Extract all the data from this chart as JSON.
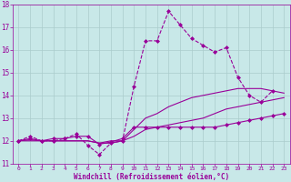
{
  "xlabel": "Windchill (Refroidissement éolien,°C)",
  "xlim": [
    -0.5,
    23.5
  ],
  "ylim": [
    11,
    18
  ],
  "yticks": [
    11,
    12,
    13,
    14,
    15,
    16,
    17,
    18
  ],
  "xticks": [
    0,
    1,
    2,
    3,
    4,
    5,
    6,
    7,
    8,
    9,
    10,
    11,
    12,
    13,
    14,
    15,
    16,
    17,
    18,
    19,
    20,
    21,
    22,
    23
  ],
  "bg_color": "#c8e8e8",
  "line_color": "#990099",
  "grid_color": "#aacccc",
  "series": [
    {
      "x": [
        0,
        1,
        2,
        3,
        4,
        5,
        6,
        7,
        8,
        9,
        10,
        11,
        12,
        13,
        14,
        15,
        16,
        17,
        18,
        19,
        20,
        21,
        22
      ],
      "y": [
        12.0,
        12.2,
        12.0,
        12.0,
        12.1,
        12.3,
        11.8,
        11.4,
        11.9,
        12.0,
        14.4,
        16.4,
        16.4,
        17.7,
        17.1,
        16.5,
        16.2,
        15.9,
        16.1,
        14.8,
        14.0,
        13.7,
        14.2
      ],
      "marker": "D",
      "markersize": 2,
      "linestyle": "--",
      "linewidth": 0.8
    },
    {
      "x": [
        0,
        1,
        2,
        3,
        4,
        5,
        6,
        7,
        8,
        9,
        10,
        11,
        12,
        13,
        14,
        15,
        16,
        17,
        18,
        19,
        20,
        21,
        22,
        23
      ],
      "y": [
        12.0,
        12.05,
        12.0,
        12.0,
        12.0,
        12.0,
        12.0,
        11.9,
        12.0,
        12.0,
        12.5,
        13.0,
        13.2,
        13.5,
        13.7,
        13.9,
        14.0,
        14.1,
        14.2,
        14.3,
        14.3,
        14.3,
        14.2,
        14.1
      ],
      "marker": null,
      "markersize": 0,
      "linestyle": "-",
      "linewidth": 0.8
    },
    {
      "x": [
        0,
        1,
        2,
        3,
        4,
        5,
        6,
        7,
        8,
        9,
        10,
        11,
        12,
        13,
        14,
        15,
        16,
        17,
        18,
        19,
        20,
        21,
        22,
        23
      ],
      "y": [
        12.0,
        12.0,
        12.0,
        12.0,
        12.0,
        12.0,
        12.0,
        11.9,
        11.9,
        12.0,
        12.2,
        12.5,
        12.6,
        12.7,
        12.8,
        12.9,
        13.0,
        13.2,
        13.4,
        13.5,
        13.6,
        13.7,
        13.8,
        13.9
      ],
      "marker": null,
      "markersize": 0,
      "linestyle": "-",
      "linewidth": 0.8
    },
    {
      "x": [
        0,
        1,
        2,
        3,
        4,
        5,
        6,
        7,
        8,
        9,
        10,
        11,
        12,
        13,
        14,
        15,
        16,
        17,
        18,
        19,
        20,
        21,
        22,
        23
      ],
      "y": [
        12.0,
        12.1,
        12.0,
        12.1,
        12.1,
        12.2,
        12.2,
        11.85,
        11.95,
        12.1,
        12.6,
        12.6,
        12.6,
        12.6,
        12.6,
        12.6,
        12.6,
        12.6,
        12.7,
        12.8,
        12.9,
        13.0,
        13.1,
        13.2
      ],
      "marker": "D",
      "markersize": 2,
      "linestyle": "-",
      "linewidth": 0.8
    }
  ]
}
